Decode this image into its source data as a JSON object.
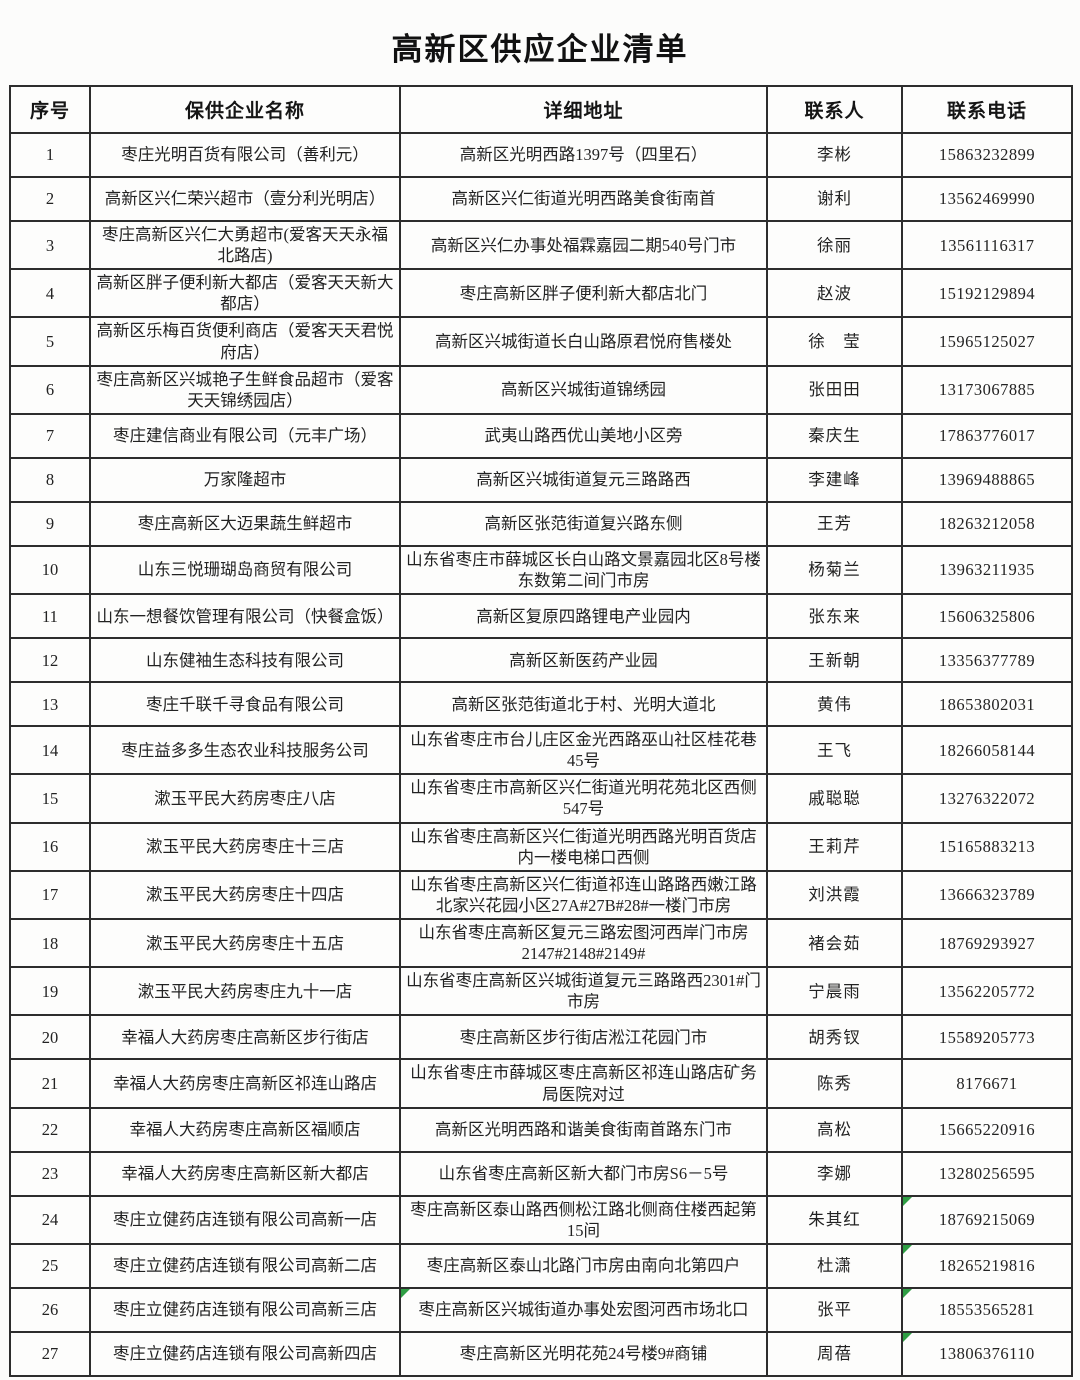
{
  "title": "高新区供应企业清单",
  "colors": {
    "corner_mark_green": "#2f9e44",
    "border": "#2d2d2d",
    "text": "#1f1f1f",
    "page_background": "#fcfcfb"
  },
  "table": {
    "columns": [
      "序号",
      "保供企业名称",
      "详细地址",
      "联系人",
      "联系电话"
    ],
    "rows": [
      {
        "no": "1",
        "name": "枣庄光明百货有限公司（善利元）",
        "address": "高新区光明西路1397号（四里石）",
        "contact": "李彬",
        "phone": "15863232899",
        "marks": []
      },
      {
        "no": "2",
        "name": "高新区兴仁荣兴超市（壹分利光明店）",
        "address": "高新区兴仁街道光明西路美食街南首",
        "contact": "谢利",
        "phone": "13562469990",
        "marks": []
      },
      {
        "no": "3",
        "name": "枣庄高新区兴仁大勇超市(爱客天天永福北路店)",
        "address": "高新区兴仁办事处福霖嘉园二期540号门市",
        "contact": "徐丽",
        "phone": "13561116317",
        "marks": []
      },
      {
        "no": "4",
        "name": "高新区胖子便利新大都店（爱客天天新大都店）",
        "address": "枣庄高新区胖子便利新大都店北门",
        "contact": "赵波",
        "phone": "15192129894",
        "marks": []
      },
      {
        "no": "5",
        "name": "高新区乐梅百货便利商店（爱客天天君悦府店）",
        "address": "高新区兴城街道长白山路原君悦府售楼处",
        "contact": "徐　莹",
        "phone": "15965125027",
        "marks": []
      },
      {
        "no": "6",
        "name": "枣庄高新区兴城艳子生鲜食品超市（爱客天天锦绣园店）",
        "address": "高新区兴城街道锦绣园",
        "contact": "张田田",
        "phone": "13173067885",
        "marks": []
      },
      {
        "no": "7",
        "name": "枣庄建信商业有限公司（元丰广场）",
        "address": "武夷山路西优山美地小区旁",
        "contact": "秦庆生",
        "phone": "17863776017",
        "marks": []
      },
      {
        "no": "8",
        "name": "万家隆超市",
        "address": "高新区兴城街道复元三路路西",
        "contact": "李建峰",
        "phone": "13969488865",
        "marks": []
      },
      {
        "no": "9",
        "name": "枣庄高新区大迈果蔬生鲜超市",
        "address": "高新区张范街道复兴路东侧",
        "contact": "王芳",
        "phone": "18263212058",
        "marks": []
      },
      {
        "no": "10",
        "name": "山东三悦珊瑚岛商贸有限公司",
        "address": "山东省枣庄市薛城区长白山路文景嘉园北区8号楼东数第二间门市房",
        "contact": "杨菊兰",
        "phone": "13963211935",
        "marks": []
      },
      {
        "no": "11",
        "name": "山东一想餐饮管理有限公司（快餐盒饭）",
        "address": "高新区复原四路锂电产业园内",
        "contact": "张东来",
        "phone": "15606325806",
        "marks": []
      },
      {
        "no": "12",
        "name": "山东健袖生态科技有限公司",
        "address": "高新区新医药产业园",
        "contact": "王新朝",
        "phone": "13356377789",
        "marks": []
      },
      {
        "no": "13",
        "name": "枣庄千联千寻食品有限公司",
        "address": "高新区张范街道北于村、光明大道北",
        "contact": "黄伟",
        "phone": "18653802031",
        "marks": []
      },
      {
        "no": "14",
        "name": "枣庄益多多生态农业科技服务公司",
        "address": "山东省枣庄市台儿庄区金光西路巫山社区桂花巷45号",
        "contact": "王飞",
        "phone": "18266058144",
        "marks": []
      },
      {
        "no": "15",
        "name": "漱玉平民大药房枣庄八店",
        "address": "山东省枣庄市高新区兴仁街道光明花苑北区西侧547号",
        "contact": "戚聪聪",
        "phone": "13276322072",
        "marks": []
      },
      {
        "no": "16",
        "name": "漱玉平民大药房枣庄十三店",
        "address": "山东省枣庄高新区兴仁街道光明西路光明百货店内一楼电梯口西侧",
        "contact": "王莉芹",
        "phone": "15165883213",
        "marks": []
      },
      {
        "no": "17",
        "name": "漱玉平民大药房枣庄十四店",
        "address": "山东省枣庄高新区兴仁街道祁连山路路西嫩江路北家兴花园小区27A#27B#28#一楼门市房",
        "contact": "刘洪霞",
        "phone": "13666323789",
        "marks": []
      },
      {
        "no": "18",
        "name": "漱玉平民大药房枣庄十五店",
        "address": "山东省枣庄高新区复元三路宏图河西岸门市房2147#2148#2149#",
        "contact": "褚会茹",
        "phone": "18769293927",
        "marks": []
      },
      {
        "no": "19",
        "name": "漱玉平民大药房枣庄九十一店",
        "address": "山东省枣庄高新区兴城街道复元三路路西2301#门市房",
        "contact": "宁晨雨",
        "phone": "13562205772",
        "marks": []
      },
      {
        "no": "20",
        "name": "幸福人大药房枣庄高新区步行街店",
        "address": "枣庄高新区步行街店淞江花园门市",
        "contact": "胡秀钗",
        "phone": "15589205773",
        "marks": []
      },
      {
        "no": "21",
        "name": "幸福人大药房枣庄高新区祁连山路店",
        "address": "山东省枣庄市薛城区枣庄高新区祁连山路店矿务局医院对过",
        "contact": "陈秀",
        "phone": "8176671",
        "marks": []
      },
      {
        "no": "22",
        "name": "幸福人大药房枣庄高新区福顺店",
        "address": "高新区光明西路和谐美食街南首路东门市",
        "contact": "高松",
        "phone": "15665220916",
        "marks": []
      },
      {
        "no": "23",
        "name": "幸福人大药房枣庄高新区新大都店",
        "address": "山东省枣庄高新区新大都门市房S6－5号",
        "contact": "李娜",
        "phone": "13280256595",
        "marks": []
      },
      {
        "no": "24",
        "name": "枣庄立健药店连锁有限公司高新一店",
        "address": "枣庄高新区泰山路西侧松江路北侧商住楼西起第15间",
        "contact": "朱其红",
        "phone": "18769215069",
        "marks": [
          "phone"
        ]
      },
      {
        "no": "25",
        "name": "枣庄立健药店连锁有限公司高新二店",
        "address": "枣庄高新区泰山北路门市房由南向北第四户",
        "contact": "杜潇",
        "phone": "18265219816",
        "marks": [
          "phone"
        ]
      },
      {
        "no": "26",
        "name": "枣庄立健药店连锁有限公司高新三店",
        "address": "枣庄高新区兴城街道办事处宏图河西市场北口",
        "contact": "张平",
        "phone": "18553565281",
        "marks": [
          "address",
          "phone"
        ]
      },
      {
        "no": "27",
        "name": "枣庄立健药店连锁有限公司高新四店",
        "address": "枣庄高新区光明花苑24号楼9#商铺",
        "contact": "周蓓",
        "phone": "13806376110",
        "marks": [
          "phone"
        ]
      }
    ]
  }
}
